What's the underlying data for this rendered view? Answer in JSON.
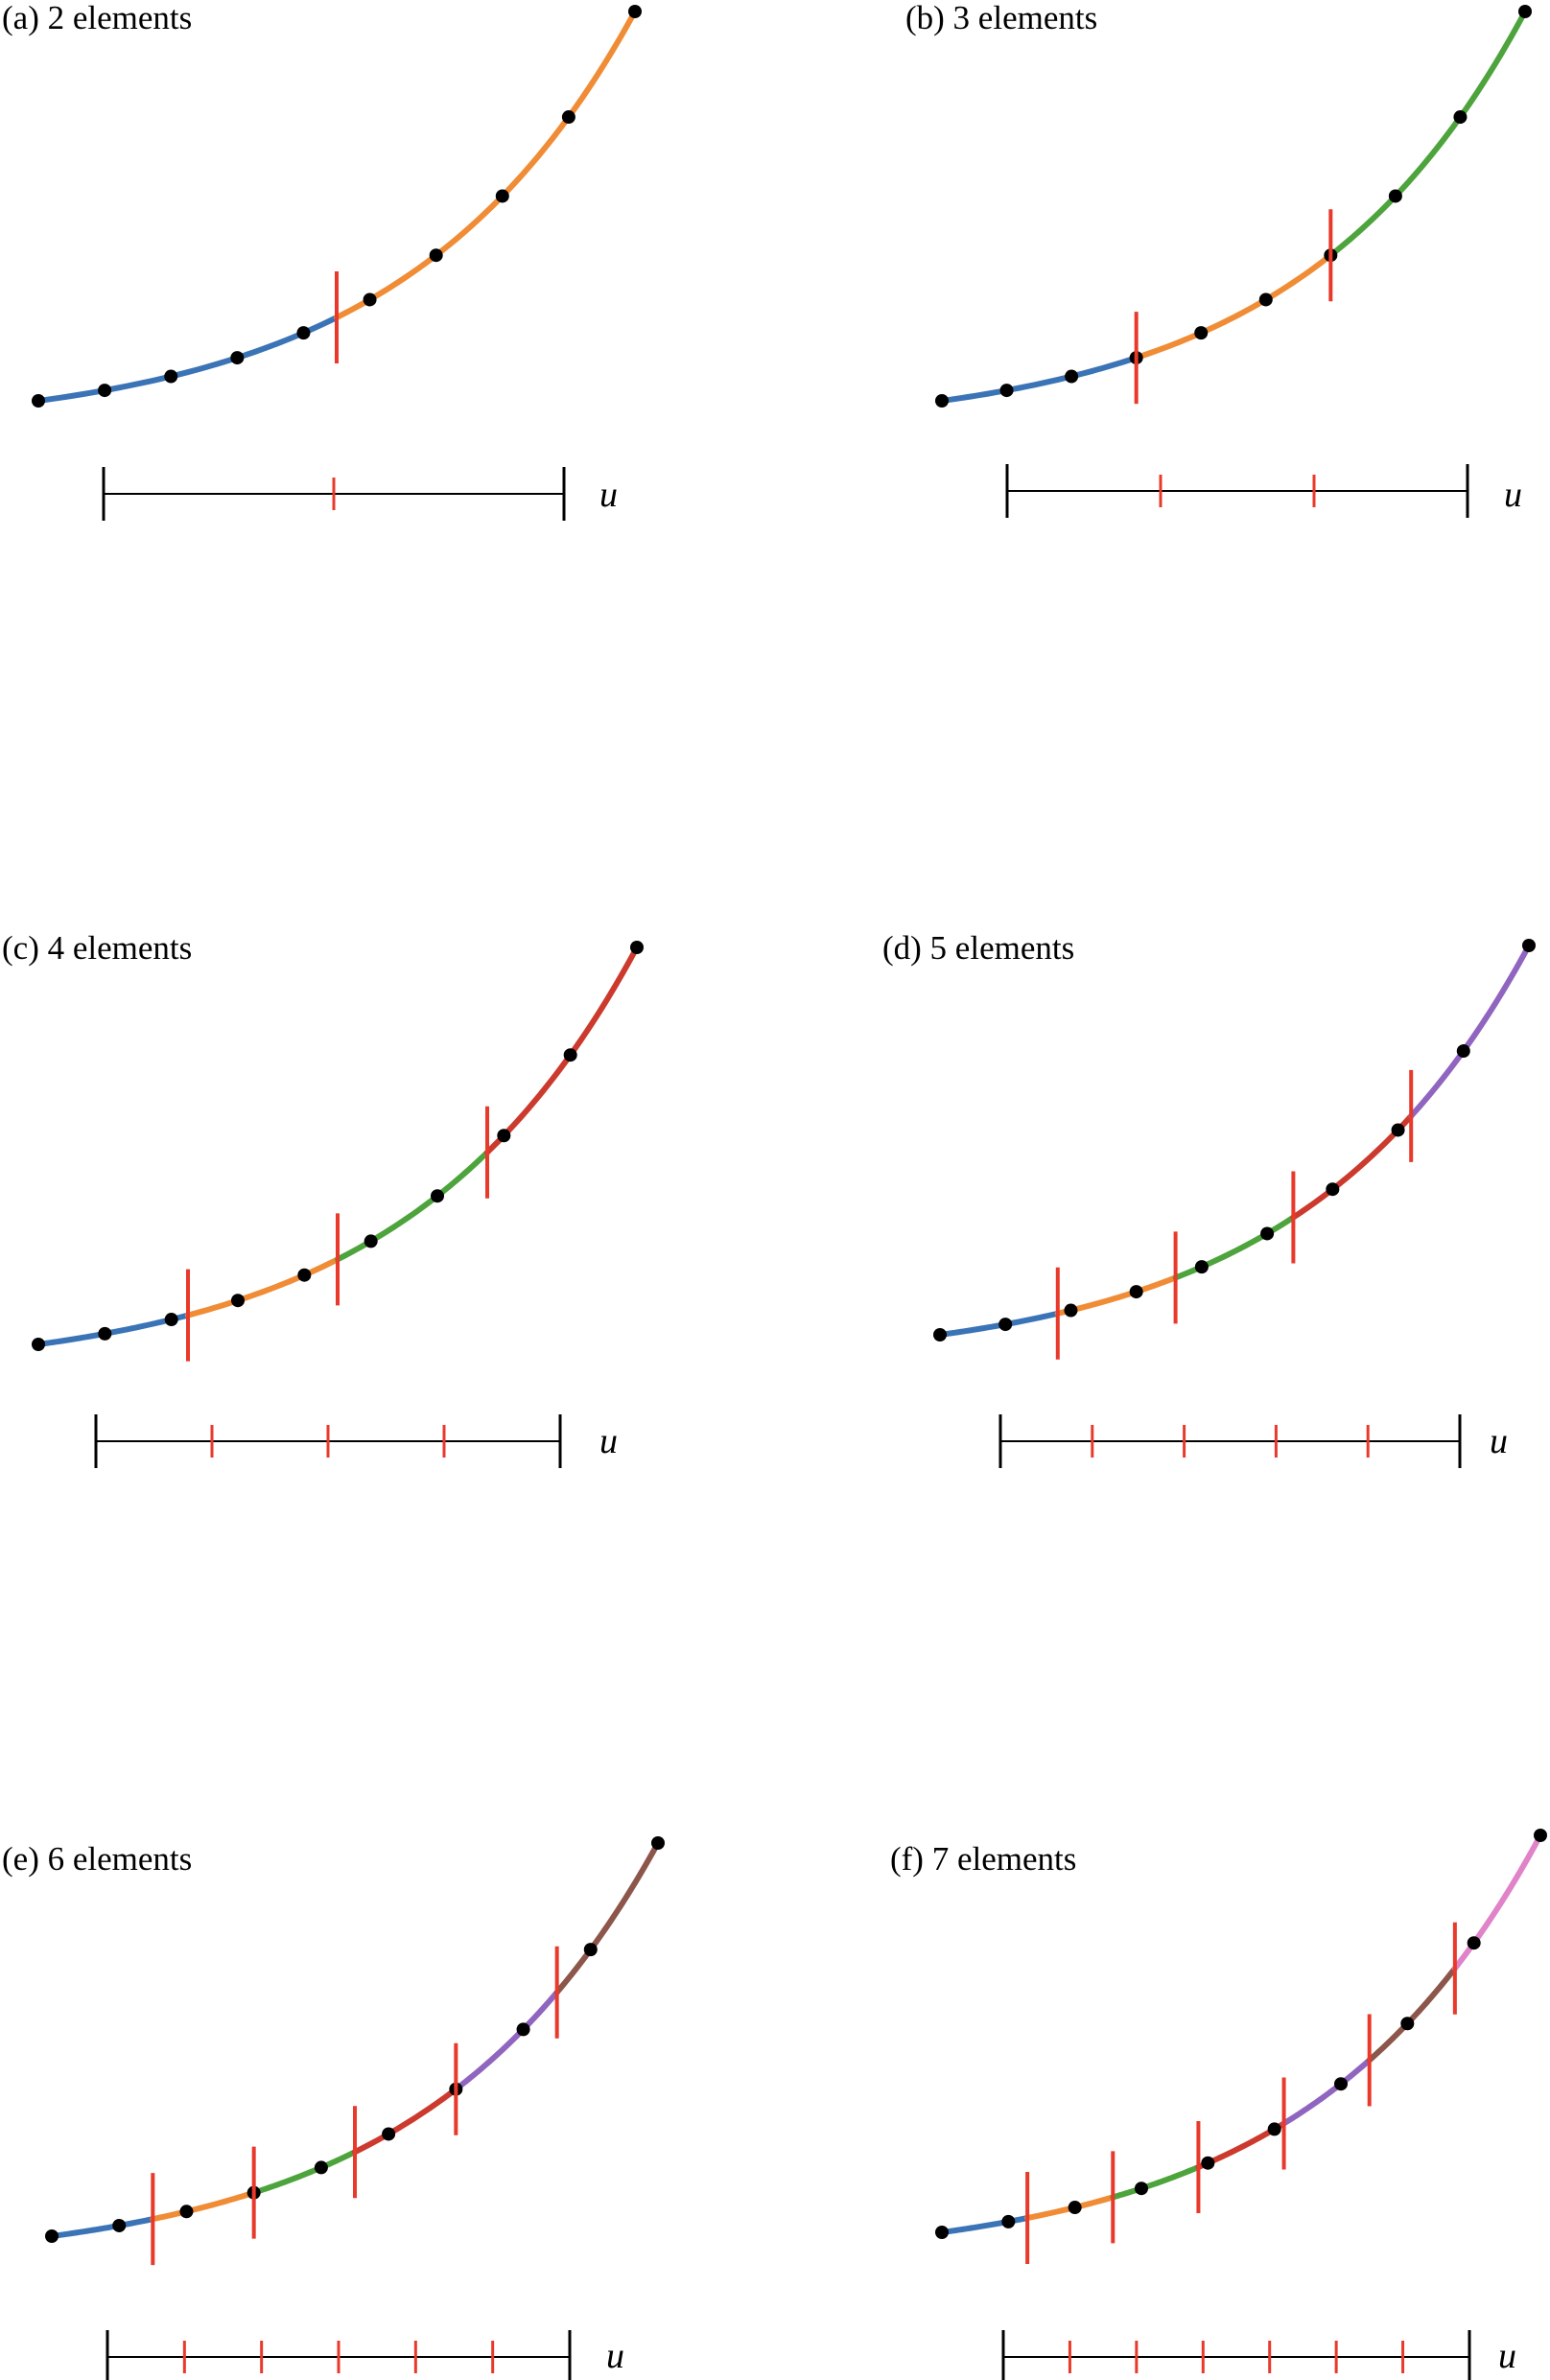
{
  "panels": [
    {
      "id": "a",
      "label": "(a) 2 elements",
      "element_count": 2
    },
    {
      "id": "b",
      "label": "(b) 3 elements",
      "element_count": 3
    },
    {
      "id": "c",
      "label": "(c) 4 elements",
      "element_count": 4
    },
    {
      "id": "d",
      "label": "(d) 5 elements",
      "element_count": 5
    },
    {
      "id": "e",
      "label": "(e) 6 elements",
      "element_count": 6
    },
    {
      "id": "f",
      "label": "(f) 7 elements",
      "element_count": 7
    }
  ],
  "axis_label": "u",
  "node_count": 10,
  "colors": {
    "elements": [
      "#3b74b6",
      "#f08c35",
      "#4ea43c",
      "#cc3a2e",
      "#9065c0",
      "#8c564b",
      "#e083c8"
    ],
    "boundary": "#e8392b",
    "node": "#000000",
    "axis": "#000000"
  }
}
